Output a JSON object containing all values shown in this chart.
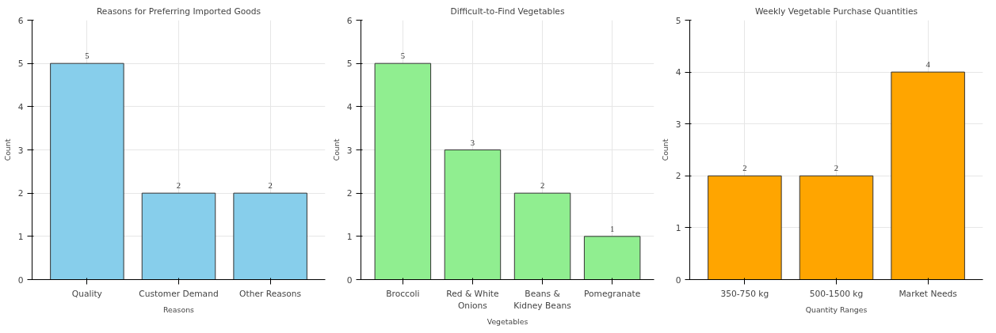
{
  "chart_data": [
    {
      "type": "bar",
      "title": "Reasons for Preferring Imported Goods",
      "xlabel": "Reasons",
      "ylabel": "Count",
      "categories": [
        "Quality",
        "Customer Demand",
        "Other Reasons"
      ],
      "values": [
        5,
        2,
        2
      ],
      "color": "#87ceeb",
      "ylim": [
        0,
        6
      ],
      "yticks": [
        0,
        1,
        2,
        3,
        4,
        5,
        6
      ],
      "grid": true,
      "data_labels": true
    },
    {
      "type": "bar",
      "title": "Difficult-to-Find Vegetables",
      "xlabel": "Vegetables",
      "ylabel": "Count",
      "categories": [
        "Broccoli",
        "Red & White Onions",
        "Beans & Kidney Beans",
        "Pomegranate"
      ],
      "values": [
        5,
        3,
        2,
        1
      ],
      "color": "#90ee90",
      "ylim": [
        0,
        6
      ],
      "yticks": [
        0,
        1,
        2,
        3,
        4,
        5,
        6
      ],
      "grid": true,
      "data_labels": true
    },
    {
      "type": "bar",
      "title": "Weekly Vegetable Purchase Quantities",
      "xlabel": "Quantity Ranges",
      "ylabel": "Count",
      "categories": [
        "350-750 kg",
        "500-1500 kg",
        "Market Needs"
      ],
      "values": [
        2,
        2,
        4
      ],
      "color": "#ffa500",
      "ylim": [
        0,
        5
      ],
      "yticks": [
        0,
        1,
        2,
        3,
        4,
        5
      ],
      "grid": true,
      "data_labels": true
    }
  ]
}
